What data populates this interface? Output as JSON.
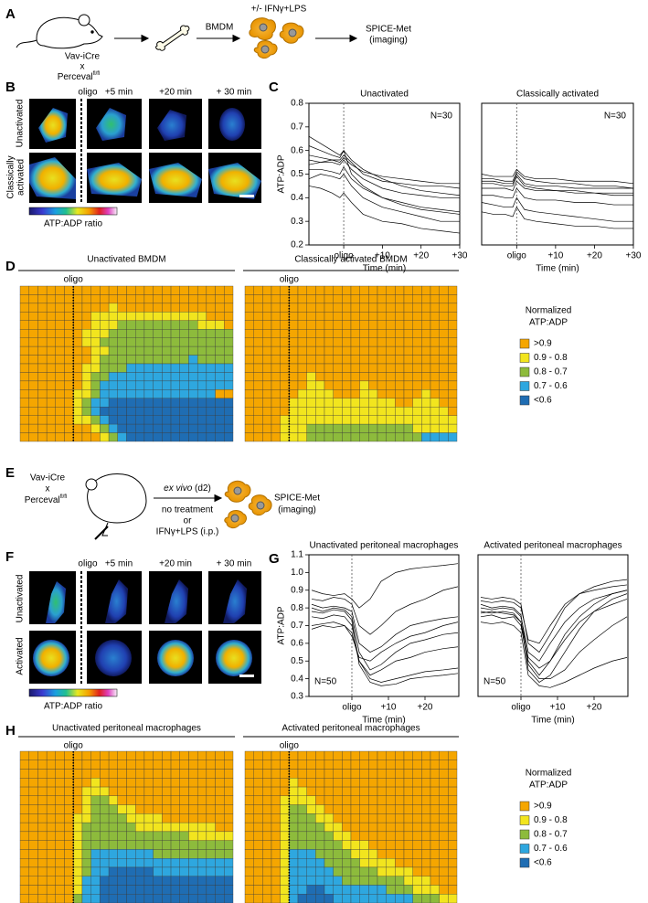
{
  "panels": {
    "A": {
      "letter": "A",
      "strain": [
        "Vav-iCre",
        "x",
        "Perceval"
      ],
      "strain_sup": "fl/fl",
      "step1": "BMDM",
      "step2": "+/- IFNγ+LPS",
      "readout": [
        "SPICE-Met",
        "(imaging)"
      ]
    },
    "B": {
      "letter": "B",
      "timepoints": [
        "oligo",
        "+5 min",
        "+20 min",
        "+ 30 min"
      ],
      "rows": [
        "Unactivated",
        "Classically",
        "activated"
      ],
      "colorbar_label": "ATP:ADP ratio"
    },
    "C": {
      "letter": "C"
    },
    "D": {
      "letter": "D",
      "legend_title": [
        "Normalized",
        "ATP:ADP"
      ],
      "legend_labels": [
        ">0.9",
        "0.9 - 0.8",
        "0.8 - 0.7",
        "0.7 - 0.6",
        "<0.6"
      ]
    },
    "E": {
      "letter": "E",
      "strain": [
        "Vav-iCre",
        "x",
        "Perceval"
      ],
      "strain_sup": "fl/fl",
      "step_italic": "ex vivo",
      "step_suffix": " (d2)",
      "conditions": [
        "no treatment",
        "or",
        "IFNγ+LPS (i.p.)"
      ],
      "readout": [
        "SPICE-Met",
        "(imaging)"
      ]
    },
    "F": {
      "letter": "F",
      "timepoints": [
        "oligo",
        "+5 min",
        "+20 min",
        "+ 30 min"
      ],
      "rows": [
        "Unactivated",
        "Activated"
      ],
      "colorbar_label": "ATP:ADP ratio"
    },
    "G": {
      "letter": "G"
    },
    "H": {
      "letter": "H",
      "legend_title": [
        "Normalized",
        "ATP:ADP"
      ],
      "legend_labels": [
        ">0.9",
        "0.9 - 0.8",
        "0.8 - 0.7",
        "0.7 - 0.6",
        "<0.6"
      ]
    }
  },
  "heatmap_colors": [
    "#f5a600",
    "#f2e51e",
    "#8dbb3c",
    "#2ea7df",
    "#1f6db3"
  ],
  "chart_data": [
    {
      "type": "line",
      "title": "Unactivated",
      "y_label": "ATP:ADP",
      "x_label": "Time (min)",
      "annotation": "N=30",
      "annotation_corner": "top-right",
      "color": "#000000",
      "x": [
        -9,
        -6,
        -3,
        -1,
        0,
        2,
        5,
        10,
        15,
        20,
        25,
        30
      ],
      "xlim": [
        -9,
        30
      ],
      "xticks": [
        {
          "value": 0,
          "label": "oligo"
        },
        {
          "value": 10,
          "label": "+10"
        },
        {
          "value": 20,
          "label": "+20"
        },
        {
          "value": 30,
          "label": "+30"
        }
      ],
      "ylim": [
        0.2,
        0.8
      ],
      "yticks": [
        0.2,
        0.3,
        0.4,
        0.5,
        0.6,
        0.7,
        0.8
      ],
      "series": [
        {
          "values": [
            0.62,
            0.6,
            0.58,
            0.57,
            0.6,
            0.5,
            0.45,
            0.4,
            0.38,
            0.36,
            0.35,
            0.34
          ]
        },
        {
          "values": [
            0.56,
            0.55,
            0.55,
            0.54,
            0.56,
            0.52,
            0.48,
            0.44,
            0.42,
            0.41,
            0.4,
            0.4
          ]
        },
        {
          "values": [
            0.52,
            0.52,
            0.51,
            0.5,
            0.53,
            0.48,
            0.44,
            0.4,
            0.37,
            0.35,
            0.34,
            0.33
          ]
        },
        {
          "values": [
            0.58,
            0.57,
            0.56,
            0.56,
            0.58,
            0.55,
            0.5,
            0.47,
            0.46,
            0.45,
            0.45,
            0.44
          ]
        },
        {
          "values": [
            0.48,
            0.5,
            0.49,
            0.48,
            0.5,
            0.45,
            0.4,
            0.36,
            0.34,
            0.32,
            0.3,
            0.3
          ]
        },
        {
          "values": [
            0.66,
            0.63,
            0.6,
            0.58,
            0.6,
            0.56,
            0.52,
            0.48,
            0.45,
            0.43,
            0.42,
            0.41
          ]
        },
        {
          "values": [
            0.45,
            0.44,
            0.42,
            0.4,
            0.42,
            0.38,
            0.33,
            0.3,
            0.29,
            0.27,
            0.26,
            0.25
          ]
        },
        {
          "values": [
            0.54,
            0.55,
            0.56,
            0.55,
            0.57,
            0.54,
            0.51,
            0.49,
            0.48,
            0.47,
            0.46,
            0.46
          ]
        }
      ]
    },
    {
      "type": "line",
      "title": "Classically activated",
      "x_label": "Time (min)",
      "annotation": "N=30",
      "annotation_corner": "top-right",
      "color": "#000000",
      "x": [
        -9,
        -6,
        -3,
        -1,
        0,
        2,
        5,
        10,
        15,
        20,
        25,
        30
      ],
      "xlim": [
        -9,
        30
      ],
      "xticks": [
        {
          "value": 0,
          "label": "oligo"
        },
        {
          "value": 10,
          "label": "+10"
        },
        {
          "value": 20,
          "label": "+20"
        },
        {
          "value": 30,
          "label": "+30"
        }
      ],
      "ylim": [
        0.2,
        0.8
      ],
      "series": [
        {
          "values": [
            0.47,
            0.47,
            0.46,
            0.46,
            0.5,
            0.46,
            0.45,
            0.45,
            0.44,
            0.44,
            0.44,
            0.44
          ]
        },
        {
          "values": [
            0.44,
            0.44,
            0.44,
            0.43,
            0.47,
            0.44,
            0.43,
            0.43,
            0.42,
            0.42,
            0.41,
            0.41
          ]
        },
        {
          "values": [
            0.5,
            0.49,
            0.49,
            0.49,
            0.52,
            0.49,
            0.48,
            0.48,
            0.47,
            0.47,
            0.47,
            0.46
          ]
        },
        {
          "values": [
            0.41,
            0.41,
            0.4,
            0.4,
            0.44,
            0.4,
            0.39,
            0.39,
            0.38,
            0.38,
            0.37,
            0.37
          ]
        },
        {
          "values": [
            0.46,
            0.46,
            0.45,
            0.45,
            0.49,
            0.45,
            0.44,
            0.43,
            0.43,
            0.42,
            0.42,
            0.42
          ]
        },
        {
          "values": [
            0.38,
            0.37,
            0.36,
            0.36,
            0.4,
            0.35,
            0.34,
            0.33,
            0.32,
            0.31,
            0.3,
            0.3
          ]
        },
        {
          "values": [
            0.48,
            0.48,
            0.47,
            0.47,
            0.51,
            0.48,
            0.47,
            0.46,
            0.46,
            0.45,
            0.45,
            0.44
          ]
        },
        {
          "values": [
            0.34,
            0.33,
            0.33,
            0.32,
            0.36,
            0.31,
            0.3,
            0.29,
            0.28,
            0.28,
            0.27,
            0.27
          ]
        }
      ]
    },
    {
      "type": "heatmap",
      "title": "Unactivated BMDM",
      "marker_label": "oligo",
      "marker_col": 6,
      "rows": [
        "000000000000000000000000",
        "000000000000000000000000",
        "000000000010000000000000",
        "000000001111111111111000",
        "000000001112222222221110",
        "000000011122222222222222",
        "000000011222222222222222",
        "000000001122222222222222",
        "000000001222222222232222",
        "000000011222333333333333",
        "000000012233333333333333",
        "000000012333333333333333",
        "000000112333333333333300",
        "000000123344444444444444",
        "000000123444444444444444",
        "000000112344444444444444",
        "000000001234444444444444",
        "000000000123444444444444"
      ]
    },
    {
      "type": "heatmap",
      "title": "Classically activated BMDM",
      "marker_label": "oligo",
      "marker_col": 5,
      "rows": [
        "000000000000000000000000",
        "000000000000000000000000",
        "000000000000000000000000",
        "000000000000000000000000",
        "000000000000000000000000",
        "000000000000000000000000",
        "000000000000000000000000",
        "000000000000000000000000",
        "000000000000000000000000",
        "000000000000000000000000",
        "000000010000000000000000",
        "000000011000010000000000",
        "000000111100011000001000",
        "000001111111111110011100",
        "000001111111111111111110",
        "000011111111111111111111",
        "000011122222222222211111",
        "000011122222222222223333"
      ]
    },
    {
      "type": "line",
      "title": "Unactivated peritoneal macrophages",
      "y_label": "ATP:ADP",
      "x_label": "Time (min)",
      "annotation": "N=50",
      "annotation_corner": "bottom-left",
      "color": "#000000",
      "x": [
        -11,
        -8,
        -5,
        -2,
        0,
        2,
        5,
        8,
        12,
        16,
        20,
        25,
        29
      ],
      "xlim": [
        -11.75,
        29.25
      ],
      "xticks": [
        {
          "value": 0,
          "label": "oligo"
        },
        {
          "value": 10,
          "label": "+10"
        },
        {
          "value": 20,
          "label": "+20"
        }
      ],
      "ylim": [
        0.3,
        1.1
      ],
      "yticks": [
        0.3,
        0.4,
        0.5,
        0.6,
        0.7,
        0.8,
        0.9,
        {
          "value": 1,
          "label": "1.0"
        },
        1.1
      ],
      "series": [
        {
          "values": [
            0.8,
            0.78,
            0.8,
            0.79,
            0.75,
            0.55,
            0.45,
            0.48,
            0.55,
            0.6,
            0.62,
            0.65,
            0.66
          ]
        },
        {
          "values": [
            0.75,
            0.74,
            0.76,
            0.75,
            0.7,
            0.5,
            0.4,
            0.38,
            0.4,
            0.42,
            0.44,
            0.45,
            0.46
          ]
        },
        {
          "values": [
            0.85,
            0.84,
            0.86,
            0.85,
            0.82,
            0.7,
            0.65,
            0.7,
            0.78,
            0.82,
            0.85,
            0.9,
            0.92
          ]
        },
        {
          "values": [
            0.7,
            0.71,
            0.72,
            0.7,
            0.66,
            0.5,
            0.42,
            0.45,
            0.5,
            0.52,
            0.55,
            0.57,
            0.58
          ]
        },
        {
          "values": [
            0.82,
            0.8,
            0.81,
            0.8,
            0.78,
            0.6,
            0.55,
            0.58,
            0.65,
            0.7,
            0.72,
            0.74,
            0.75
          ]
        },
        {
          "values": [
            0.9,
            0.88,
            0.87,
            0.88,
            0.85,
            0.8,
            0.85,
            0.95,
            1.0,
            1.02,
            1.03,
            1.04,
            1.05
          ]
        },
        {
          "values": [
            0.78,
            0.77,
            0.79,
            0.78,
            0.73,
            0.48,
            0.38,
            0.36,
            0.37,
            0.4,
            0.41,
            0.42,
            0.43
          ]
        },
        {
          "values": [
            0.68,
            0.7,
            0.69,
            0.7,
            0.64,
            0.52,
            0.5,
            0.55,
            0.6,
            0.64,
            0.66,
            0.7,
            0.72
          ]
        }
      ]
    },
    {
      "type": "line",
      "title": "Activated peritoneal macrophages",
      "x_label": "Time (min)",
      "annotation": "N=50",
      "annotation_corner": "bottom-left",
      "color": "#000000",
      "x": [
        -11,
        -8,
        -5,
        -2,
        0,
        2,
        5,
        8,
        12,
        16,
        20,
        25,
        29
      ],
      "xlim": [
        -11.75,
        29.25
      ],
      "xticks": [
        {
          "value": 0,
          "label": "oligo"
        },
        {
          "value": 10,
          "label": "+10"
        },
        {
          "value": 20,
          "label": "+20"
        }
      ],
      "ylim": [
        0.3,
        1.1
      ],
      "series": [
        {
          "values": [
            0.82,
            0.8,
            0.81,
            0.8,
            0.76,
            0.5,
            0.42,
            0.5,
            0.65,
            0.75,
            0.82,
            0.88,
            0.9
          ]
        },
        {
          "values": [
            0.78,
            0.77,
            0.78,
            0.77,
            0.72,
            0.45,
            0.38,
            0.42,
            0.55,
            0.68,
            0.78,
            0.85,
            0.88
          ]
        },
        {
          "values": [
            0.86,
            0.85,
            0.86,
            0.85,
            0.82,
            0.6,
            0.55,
            0.65,
            0.8,
            0.88,
            0.92,
            0.95,
            0.96
          ]
        },
        {
          "values": [
            0.75,
            0.76,
            0.74,
            0.75,
            0.7,
            0.48,
            0.4,
            0.4,
            0.45,
            0.55,
            0.62,
            0.7,
            0.75
          ]
        },
        {
          "values": [
            0.8,
            0.79,
            0.8,
            0.79,
            0.75,
            0.55,
            0.5,
            0.6,
            0.72,
            0.8,
            0.85,
            0.88,
            0.9
          ]
        },
        {
          "values": [
            0.72,
            0.71,
            0.72,
            0.7,
            0.66,
            0.42,
            0.36,
            0.35,
            0.38,
            0.42,
            0.46,
            0.5,
            0.52
          ]
        },
        {
          "values": [
            0.84,
            0.83,
            0.84,
            0.83,
            0.8,
            0.62,
            0.6,
            0.7,
            0.82,
            0.88,
            0.9,
            0.92,
            0.93
          ]
        },
        {
          "values": [
            0.77,
            0.78,
            0.77,
            0.76,
            0.72,
            0.52,
            0.46,
            0.5,
            0.62,
            0.72,
            0.78,
            0.82,
            0.85
          ]
        }
      ]
    },
    {
      "type": "heatmap",
      "title": "Unactivated peritoneal macrophages",
      "marker_label": "oligo",
      "marker_col": 6,
      "rows": [
        "000000000000000000000000",
        "000000000000000000000000",
        "000000000000000000000000",
        "000000001000000000000000",
        "000000011100000000000000",
        "000000012210000000000000",
        "000000012221100000000000",
        "000000112222111100000000",
        "000000122222211111111100",
        "000000122222222222211111",
        "000000122222222222222222",
        "000000123333333222222222",
        "000000123333333333333333",
        "000000123344444333333333",
        "000000133444444444444444",
        "000000133444444444444444",
        "000000233444444444444444"
      ]
    },
    {
      "type": "heatmap",
      "title": "Activated peritoneal macrophages",
      "marker_label": "oligo",
      "marker_col": 5,
      "rows": [
        "000000000000000000000000",
        "000000000000000000000000",
        "000000000000000000000000",
        "000001000000000000000000",
        "000001100000000000000000",
        "000011110000000000000000",
        "000012211000000000000000",
        "000012221100000000000000",
        "000012222110000000000000",
        "000012222211000000000000",
        "000012222221110000000000",
        "000013332222111000000000",
        "000013333222211110000000",
        "000013333322222111100000",
        "000013333332222222111000",
        "000013344333333322211100",
        "000013444433333333322211"
      ]
    }
  ]
}
